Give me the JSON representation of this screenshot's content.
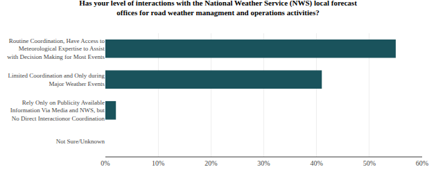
{
  "chart_data": {
    "type": "bar",
    "orientation": "horizontal",
    "title": "Has your level of interactions with the National Weather Service (NWS) local forecast\noffices for road weather managment and operations activities?",
    "categories": [
      "Not Sure/Unknown",
      "Rely Only on Publicity Available\nInformation Via Media and NWS, but\nNo Direct Interactionor Coordination",
      "Limited Coordination and Only during\nMajor Weather Events",
      "Routine Coordination, Have Access to\nMeteorological Expertise to Assist\nwith Decision Making for Most Events"
    ],
    "values": [
      0,
      0.02,
      0.41,
      0.55
    ],
    "color": "#1a535c",
    "xlim": [
      0,
      0.6
    ],
    "xticks": [
      {
        "value": 0.0,
        "label": "0%"
      },
      {
        "value": 0.1,
        "label": "10%"
      },
      {
        "value": 0.2,
        "label": "20%"
      },
      {
        "value": 0.3,
        "label": "30%"
      },
      {
        "value": 0.4,
        "label": "40%"
      },
      {
        "value": 0.5,
        "label": "50%"
      },
      {
        "value": 0.6,
        "label": "60%"
      }
    ],
    "grid": true
  }
}
